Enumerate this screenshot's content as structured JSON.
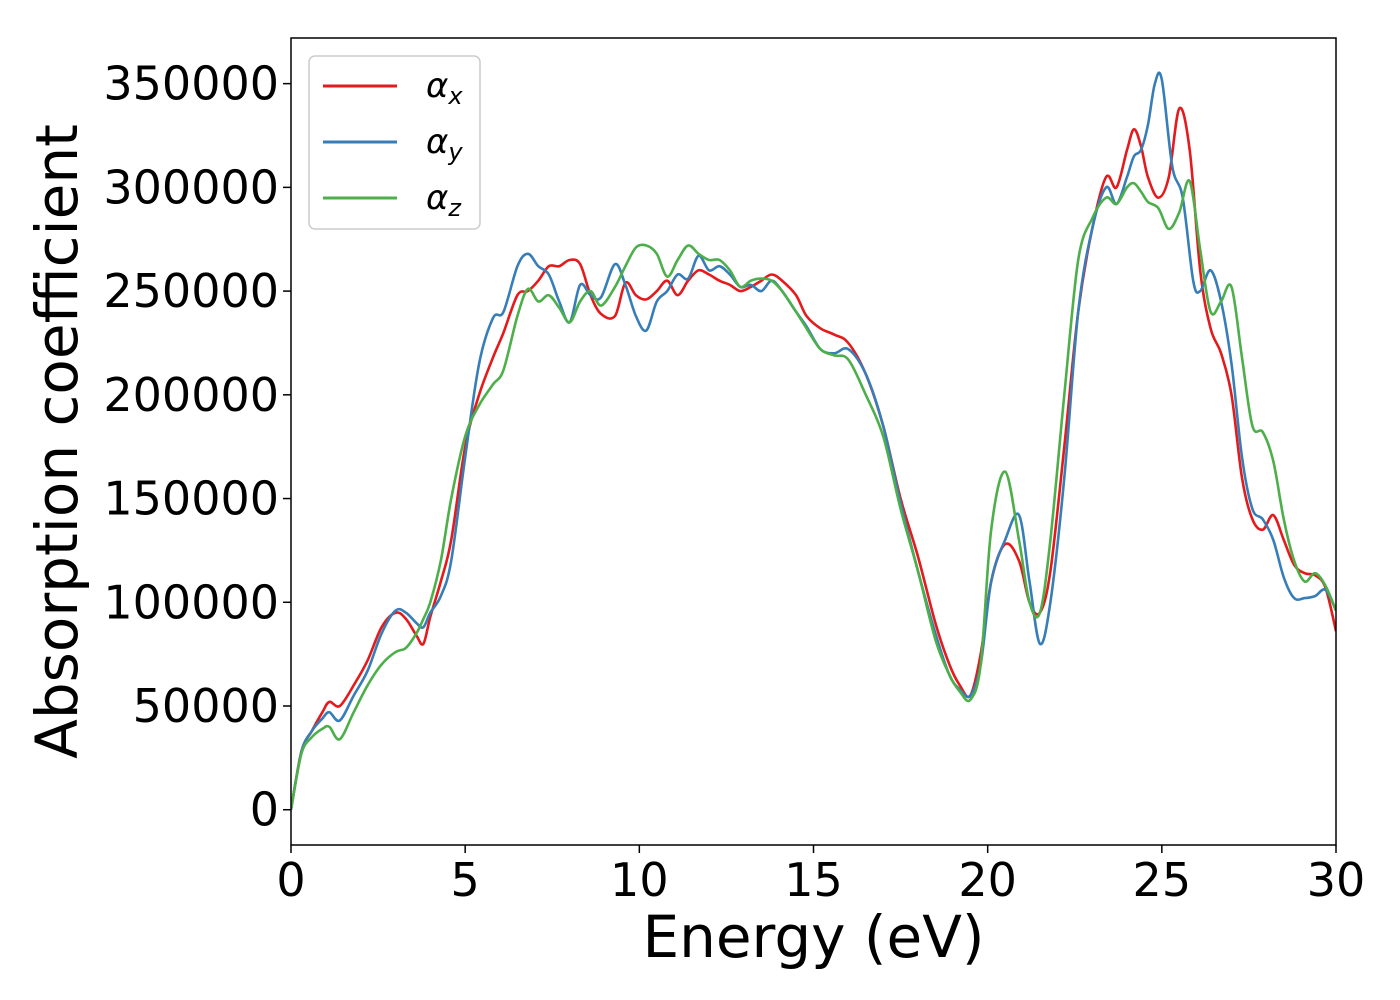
{
  "chart_data": {
    "type": "line",
    "xlabel": "Energy (eV)",
    "ylabel": "Absorption coefficient",
    "xlim": [
      0,
      30
    ],
    "ylim": [
      -17000,
      372000
    ],
    "xticks": [
      0,
      5,
      10,
      15,
      20,
      25,
      30
    ],
    "yticks": [
      0,
      50000,
      100000,
      150000,
      200000,
      250000,
      300000,
      350000
    ],
    "xtick_labels": [
      "0",
      "5",
      "10",
      "15",
      "20",
      "25",
      "30"
    ],
    "ytick_labels": [
      "0",
      "50000",
      "100000",
      "150000",
      "200000",
      "250000",
      "300000",
      "350000"
    ],
    "grid": false,
    "legend_placement": "top-left",
    "series": [
      {
        "name": "α",
        "subscript": "x",
        "color": "#e41a1c",
        "x": [
          0,
          0.3,
          0.6,
          0.9,
          1.1,
          1.4,
          1.8,
          2.2,
          2.6,
          3.0,
          3.3,
          3.6,
          3.8,
          4.0,
          4.3,
          4.6,
          5.0,
          5.4,
          5.8,
          6.1,
          6.5,
          6.8,
          7.1,
          7.4,
          7.7,
          8.0,
          8.3,
          8.6,
          8.9,
          9.3,
          9.6,
          9.9,
          10.2,
          10.5,
          10.8,
          11.1,
          11.4,
          11.7,
          12.0,
          12.3,
          12.6,
          12.9,
          13.2,
          13.5,
          13.8,
          14.1,
          14.5,
          14.8,
          15.2,
          15.6,
          16.0,
          16.5,
          17.0,
          17.5,
          18.0,
          18.5,
          18.9,
          19.2,
          19.5,
          19.8,
          20.1,
          20.5,
          20.9,
          21.2,
          21.5,
          21.8,
          22.2,
          22.6,
          23.0,
          23.4,
          23.7,
          24.0,
          24.2,
          24.4,
          24.6,
          24.9,
          25.2,
          25.5,
          25.8,
          26.1,
          26.4,
          26.7,
          27.0,
          27.3,
          27.6,
          27.9,
          28.2,
          28.5,
          28.8,
          29.1,
          29.4,
          29.7,
          30.0
        ],
        "y": [
          0,
          28000,
          38000,
          47000,
          52000,
          50000,
          60000,
          72000,
          88000,
          95000,
          92000,
          84000,
          80000,
          93000,
          110000,
          130000,
          175000,
          200000,
          218000,
          230000,
          248000,
          250000,
          255000,
          262000,
          262000,
          265000,
          263000,
          248000,
          239000,
          238000,
          254000,
          248000,
          246000,
          250000,
          255000,
          248000,
          255000,
          260000,
          258000,
          255000,
          253000,
          250000,
          252000,
          255000,
          258000,
          255000,
          248000,
          238000,
          232000,
          229000,
          225000,
          210000,
          185000,
          150000,
          122000,
          90000,
          70000,
          60000,
          55000,
          75000,
          110000,
          128000,
          120000,
          100000,
          95000,
          115000,
          175000,
          240000,
          280000,
          305000,
          300000,
          318000,
          328000,
          320000,
          305000,
          295000,
          305000,
          338000,
          318000,
          260000,
          232000,
          220000,
          200000,
          160000,
          140000,
          135000,
          142000,
          130000,
          118000,
          114000,
          113000,
          107000,
          86000
        ]
      },
      {
        "name": "α",
        "subscript": "y",
        "color": "#377eb8",
        "x": [
          0,
          0.3,
          0.6,
          0.9,
          1.1,
          1.4,
          1.8,
          2.2,
          2.6,
          3.0,
          3.3,
          3.6,
          3.8,
          4.0,
          4.3,
          4.6,
          5.0,
          5.4,
          5.8,
          6.1,
          6.5,
          6.8,
          7.1,
          7.4,
          7.7,
          8.0,
          8.3,
          8.6,
          8.9,
          9.3,
          9.6,
          9.9,
          10.2,
          10.5,
          10.8,
          11.1,
          11.4,
          11.7,
          12.0,
          12.3,
          12.6,
          12.9,
          13.2,
          13.5,
          13.8,
          14.1,
          14.5,
          14.8,
          15.2,
          15.6,
          16.0,
          16.5,
          17.0,
          17.5,
          18.0,
          18.5,
          18.9,
          19.2,
          19.5,
          19.8,
          20.1,
          20.5,
          20.9,
          21.2,
          21.5,
          21.8,
          22.2,
          22.6,
          23.0,
          23.4,
          23.7,
          24.0,
          24.2,
          24.4,
          24.6,
          24.8,
          25.0,
          25.3,
          25.6,
          25.9,
          26.1,
          26.4,
          26.7,
          27.0,
          27.3,
          27.6,
          27.9,
          28.2,
          28.5,
          28.8,
          29.1,
          29.4,
          29.7,
          30.0
        ],
        "y": [
          0,
          28000,
          38000,
          44000,
          47000,
          43000,
          55000,
          67000,
          85000,
          96000,
          95000,
          90000,
          88000,
          95000,
          103000,
          120000,
          170000,
          215000,
          237000,
          240000,
          262000,
          268000,
          262000,
          258000,
          245000,
          235000,
          253000,
          248000,
          247000,
          263000,
          253000,
          238000,
          231000,
          245000,
          250000,
          258000,
          256000,
          267000,
          260000,
          262000,
          258000,
          252000,
          253000,
          250000,
          255000,
          250000,
          240000,
          233000,
          222000,
          220000,
          222000,
          210000,
          185000,
          148000,
          115000,
          85000,
          65000,
          58000,
          55000,
          70000,
          110000,
          130000,
          142000,
          110000,
          80000,
          100000,
          160000,
          240000,
          280000,
          300000,
          292000,
          305000,
          315000,
          318000,
          330000,
          350000,
          352000,
          310000,
          295000,
          255000,
          250000,
          260000,
          245000,
          215000,
          170000,
          145000,
          140000,
          130000,
          112000,
          102000,
          102000,
          103000,
          106000,
          96000
        ]
      },
      {
        "name": "α",
        "subscript": "z",
        "color": "#4daf4a",
        "x": [
          0,
          0.3,
          0.6,
          0.9,
          1.1,
          1.4,
          1.8,
          2.2,
          2.6,
          3.0,
          3.3,
          3.6,
          3.8,
          4.0,
          4.3,
          4.6,
          5.0,
          5.4,
          5.8,
          6.1,
          6.5,
          6.8,
          7.1,
          7.4,
          7.7,
          8.0,
          8.3,
          8.6,
          8.9,
          9.3,
          9.6,
          9.9,
          10.2,
          10.5,
          10.8,
          11.1,
          11.4,
          11.7,
          12.0,
          12.3,
          12.6,
          12.9,
          13.2,
          13.5,
          13.8,
          14.1,
          14.5,
          14.8,
          15.2,
          15.6,
          16.0,
          16.5,
          17.0,
          17.5,
          18.0,
          18.5,
          18.9,
          19.2,
          19.5,
          19.8,
          20.1,
          20.5,
          20.9,
          21.2,
          21.5,
          21.8,
          22.2,
          22.6,
          23.0,
          23.4,
          23.7,
          24.0,
          24.2,
          24.4,
          24.6,
          24.9,
          25.2,
          25.5,
          25.8,
          26.1,
          26.4,
          26.7,
          27.0,
          27.3,
          27.6,
          27.9,
          28.2,
          28.5,
          28.8,
          29.1,
          29.4,
          29.7,
          30.0
        ],
        "y": [
          0,
          27000,
          35000,
          39000,
          40000,
          34000,
          47000,
          60000,
          70000,
          76000,
          78000,
          85000,
          92000,
          100000,
          120000,
          150000,
          180000,
          195000,
          205000,
          212000,
          238000,
          251000,
          245000,
          248000,
          242000,
          235000,
          245000,
          250000,
          243000,
          252000,
          262000,
          271000,
          272000,
          268000,
          257000,
          265000,
          272000,
          268000,
          265000,
          265000,
          260000,
          252000,
          255000,
          256000,
          255000,
          250000,
          240000,
          232000,
          222000,
          219000,
          217000,
          200000,
          180000,
          145000,
          115000,
          82000,
          65000,
          57000,
          53000,
          70000,
          135000,
          163000,
          130000,
          100000,
          95000,
          130000,
          200000,
          265000,
          285000,
          295000,
          292000,
          300000,
          302000,
          298000,
          293000,
          290000,
          280000,
          288000,
          303000,
          270000,
          240000,
          245000,
          252000,
          218000,
          185000,
          182000,
          168000,
          140000,
          120000,
          110000,
          114000,
          108000,
          96000
        ]
      }
    ]
  }
}
